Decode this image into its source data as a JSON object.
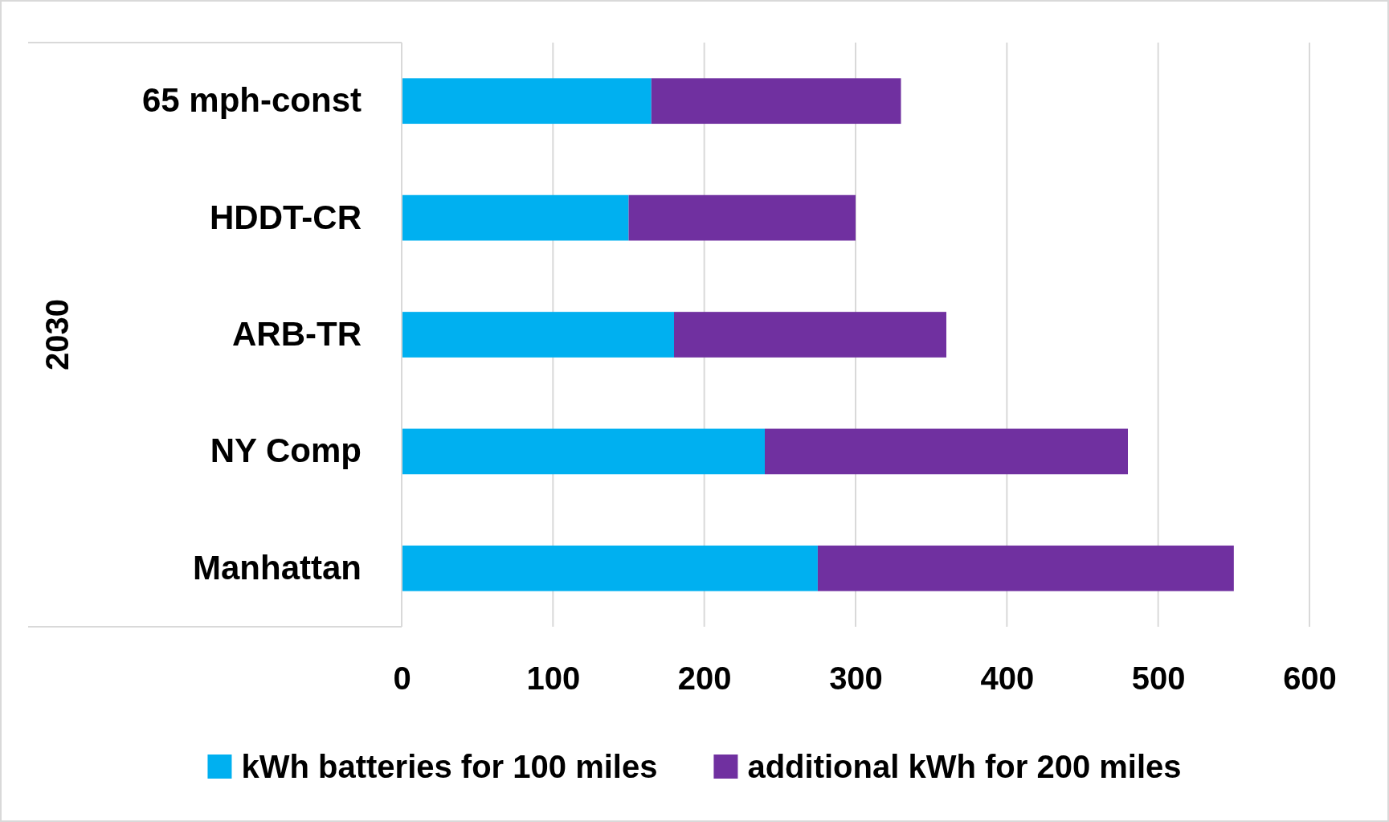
{
  "chart_data": {
    "type": "bar",
    "orientation": "horizontal",
    "stacked": true,
    "ylabel": "2030",
    "categories": [
      "65 mph-const",
      "HDDT-CR",
      "ARB-TR",
      "NY Comp",
      "Manhattan"
    ],
    "series": [
      {
        "name": "kWh batteries for 100 miles",
        "color": "#00b0f0",
        "values": [
          165,
          150,
          180,
          240,
          275
        ]
      },
      {
        "name": "additional kWh for 200 miles",
        "color": "#7030a0",
        "values": [
          165,
          150,
          180,
          240,
          275
        ]
      }
    ],
    "xlim": [
      0,
      600
    ],
    "xticks": [
      0,
      100,
      200,
      300,
      400,
      500,
      600
    ],
    "grid": "x",
    "legend": "bottom"
  }
}
